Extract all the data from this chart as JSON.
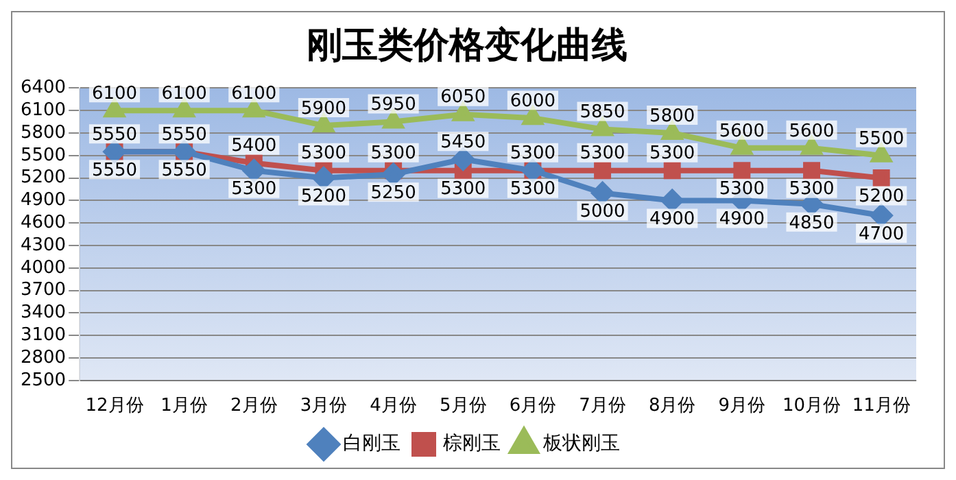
{
  "chart_data": {
    "type": "line",
    "title": "刚玉类价格变化曲线",
    "categories": [
      "12月份",
      "1月份",
      "2月份",
      "3月份",
      "4月份",
      "5月份",
      "6月份",
      "7月份",
      "8月份",
      "9月份",
      "10月份",
      "11月份"
    ],
    "series": [
      {
        "name": "白刚玉",
        "color": "#4f81bd",
        "marker": "diamond",
        "values": [
          5550,
          5550,
          5300,
          5200,
          5250,
          5450,
          5300,
          5000,
          4900,
          4900,
          4850,
          4700
        ]
      },
      {
        "name": "棕刚玉",
        "color": "#c0504d",
        "marker": "square",
        "values": [
          5550,
          5550,
          5400,
          5300,
          5300,
          5300,
          5300,
          5300,
          5300,
          5300,
          5300,
          5200
        ]
      },
      {
        "name": "板状刚玉",
        "color": "#9bbb59",
        "marker": "triangle",
        "values": [
          6100,
          6100,
          6100,
          5900,
          5950,
          6050,
          6000,
          5850,
          5800,
          5600,
          5600,
          5500
        ]
      }
    ],
    "ylim": [
      2500,
      6400
    ],
    "yticks": [
      2500,
      2800,
      3100,
      3400,
      3700,
      4000,
      4300,
      4600,
      4900,
      5200,
      5500,
      5800,
      6100,
      6400
    ],
    "grid": "y",
    "legend": "bottom",
    "data_labels": true
  }
}
